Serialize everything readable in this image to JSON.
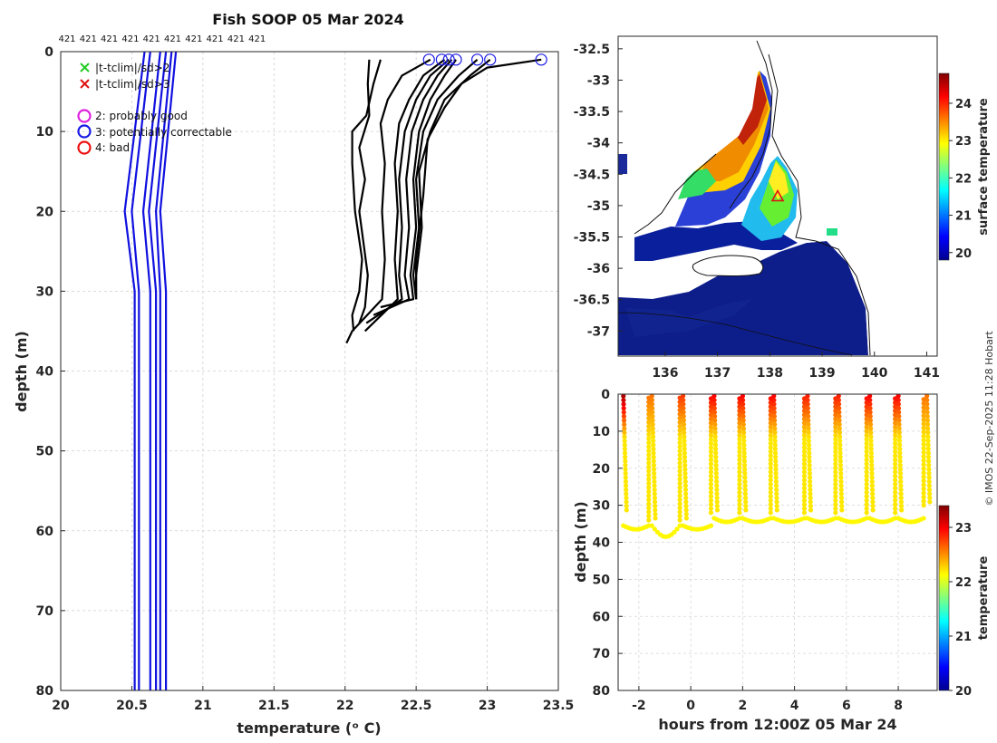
{
  "figure": {
    "title": "Fish SOOP 05 Mar 2024",
    "copyright": "© IMOS 22-Sep-2025 11:28 Hobart"
  },
  "legend": {
    "items": [
      {
        "label": "|t-tclim|/sd>2",
        "marker": "x",
        "color": "#22cc22"
      },
      {
        "label": "|t-tclim|/sd>3",
        "marker": "x",
        "color": "#e01010"
      },
      {
        "label": "2: probably good",
        "marker": "o",
        "color": "#dd22dd"
      },
      {
        "label": "3: potentially correctable",
        "marker": "o",
        "color": "#1a1ae6"
      },
      {
        "label": "4: bad",
        "marker": "o",
        "color": "#ee1111"
      }
    ]
  },
  "colors": {
    "climatology": "#1010e0",
    "profiles": "#000000",
    "flag3": "#1a1ae6"
  },
  "chart_data": [
    {
      "type": "line",
      "id": "profile-plot",
      "xlabel": "temperature (ᵒ C)",
      "ylabel": "depth (m)",
      "xlim": [
        20,
        23.5
      ],
      "ylim": [
        80,
        0
      ],
      "xticks": [
        20,
        20.5,
        21,
        21.5,
        22,
        22.5,
        23,
        23.5
      ],
      "yticks": [
        0,
        10,
        20,
        30,
        40,
        50,
        60,
        70,
        80
      ],
      "grid": true,
      "top_labels": [
        "421",
        "421",
        "421",
        "421",
        "421",
        "421",
        "421",
        "421",
        "421",
        "421"
      ],
      "climatology_series": [
        {
          "name": "",
          "points": [
            [
              20.59,
              0
            ],
            [
              20.45,
              20
            ],
            [
              20.52,
              30
            ],
            [
              20.52,
              80
            ]
          ]
        },
        {
          "name": "",
          "points": [
            [
              20.63,
              0
            ],
            [
              20.5,
              20
            ],
            [
              20.55,
              30
            ],
            [
              20.55,
              80
            ]
          ]
        },
        {
          "name": "",
          "points": [
            [
              20.7,
              0
            ],
            [
              20.58,
              20
            ],
            [
              20.63,
              30
            ],
            [
              20.63,
              80
            ]
          ]
        },
        {
          "name": "",
          "points": [
            [
              20.74,
              0
            ],
            [
              20.62,
              20
            ],
            [
              20.67,
              30
            ],
            [
              20.67,
              80
            ]
          ]
        },
        {
          "name": "",
          "points": [
            [
              20.78,
              0
            ],
            [
              20.67,
              20
            ],
            [
              20.7,
              30
            ],
            [
              20.7,
              80
            ]
          ]
        },
        {
          "name": "",
          "points": [
            [
              20.81,
              0
            ],
            [
              20.7,
              20
            ],
            [
              20.74,
              30
            ],
            [
              20.74,
              80
            ]
          ]
        }
      ],
      "profile_series": [
        {
          "name": "",
          "points": [
            [
              22.17,
              1
            ],
            [
              22.16,
              4
            ],
            [
              22.17,
              8
            ],
            [
              22.1,
              12
            ],
            [
              22.14,
              16
            ],
            [
              22.1,
              20
            ],
            [
              22.13,
              24
            ],
            [
              22.16,
              28
            ],
            [
              22.14,
              32
            ],
            [
              22.1,
              34
            ]
          ]
        },
        {
          "name": "",
          "points": [
            [
              22.25,
              1
            ],
            [
              22.2,
              4
            ],
            [
              22.15,
              8
            ],
            [
              22.05,
              10
            ],
            [
              22.05,
              14
            ],
            [
              22.07,
              20
            ],
            [
              22.12,
              26
            ],
            [
              22.1,
              30
            ],
            [
              22.05,
              33
            ],
            [
              22.06,
              35
            ]
          ]
        },
        {
          "name": "",
          "points": [
            [
              22.6,
              1
            ],
            [
              22.4,
              3
            ],
            [
              22.3,
              6
            ],
            [
              22.25,
              9
            ],
            [
              22.28,
              14
            ],
            [
              22.26,
              20
            ],
            [
              22.28,
              26
            ],
            [
              22.26,
              31
            ],
            [
              22.05,
              35
            ],
            [
              22.01,
              36.5
            ]
          ]
        },
        {
          "name": "",
          "points": [
            [
              22.7,
              1
            ],
            [
              22.55,
              3
            ],
            [
              22.45,
              6
            ],
            [
              22.38,
              9
            ],
            [
              22.35,
              14
            ],
            [
              22.37,
              20
            ],
            [
              22.35,
              26
            ],
            [
              22.37,
              31
            ],
            [
              22.14,
              35
            ]
          ]
        },
        {
          "name": "",
          "points": [
            [
              22.73,
              1
            ],
            [
              22.6,
              3
            ],
            [
              22.5,
              6
            ],
            [
              22.42,
              10
            ],
            [
              22.38,
              16
            ],
            [
              22.4,
              22
            ],
            [
              22.38,
              28
            ],
            [
              22.4,
              31
            ],
            [
              22.15,
              34
            ]
          ]
        },
        {
          "name": "",
          "points": [
            [
              22.75,
              1
            ],
            [
              22.65,
              3
            ],
            [
              22.55,
              6
            ],
            [
              22.47,
              10
            ],
            [
              22.43,
              16
            ],
            [
              22.45,
              22
            ],
            [
              22.42,
              28
            ],
            [
              22.45,
              31
            ],
            [
              22.2,
              33
            ]
          ]
        },
        {
          "name": "",
          "points": [
            [
              22.78,
              1
            ],
            [
              22.7,
              3
            ],
            [
              22.6,
              6
            ],
            [
              22.52,
              10
            ],
            [
              22.48,
              16
            ],
            [
              22.5,
              22
            ],
            [
              22.46,
              28
            ],
            [
              22.48,
              31
            ],
            [
              22.25,
              32
            ]
          ]
        },
        {
          "name": "",
          "points": [
            [
              22.93,
              1
            ],
            [
              22.8,
              3
            ],
            [
              22.65,
              6
            ],
            [
              22.55,
              10
            ],
            [
              22.5,
              16
            ],
            [
              22.52,
              22
            ],
            [
              22.48,
              28
            ],
            [
              22.5,
              31
            ]
          ]
        },
        {
          "name": "",
          "points": [
            [
              23.02,
              1
            ],
            [
              22.88,
              3
            ],
            [
              22.7,
              6
            ],
            [
              22.6,
              10
            ],
            [
              22.52,
              15
            ],
            [
              22.54,
              22
            ],
            [
              22.5,
              28
            ],
            [
              22.5,
              31
            ]
          ]
        },
        {
          "name": "",
          "points": [
            [
              23.38,
              1
            ],
            [
              23.0,
              2
            ],
            [
              22.82,
              4
            ],
            [
              22.7,
              7
            ],
            [
              22.58,
              11
            ],
            [
              22.55,
              18
            ],
            [
              22.5,
              26
            ],
            [
              22.5,
              31
            ]
          ]
        }
      ],
      "flag3_markers": [
        [
          22.59,
          1
        ],
        [
          22.68,
          1
        ],
        [
          22.73,
          1
        ],
        [
          22.78,
          1
        ],
        [
          22.93,
          1
        ],
        [
          23.02,
          1
        ],
        [
          23.38,
          1
        ]
      ]
    },
    {
      "type": "heatmap",
      "id": "sst-map",
      "colorbar_label": "surface temperature",
      "xlim": [
        135.1,
        141.2
      ],
      "ylim": [
        -37.4,
        -32.3
      ],
      "xticks": [
        136,
        137,
        138,
        139,
        140,
        141
      ],
      "yticks": [
        -32.5,
        -33,
        -33.5,
        -34,
        -34.5,
        -35,
        -35.5,
        -36,
        -36.5,
        -37
      ],
      "colorbar_range": [
        19.8,
        24.8
      ],
      "colorbar_ticks": [
        20,
        21,
        22,
        23,
        24
      ],
      "track_position": [
        138.15,
        -34.85
      ]
    },
    {
      "type": "scatter",
      "id": "depth-time",
      "xlabel": "hours from 12:00Z 05 Mar 24",
      "ylabel": "depth (m)",
      "colorbar_label": "temperature",
      "xlim": [
        -2.8,
        9.5
      ],
      "ylim": [
        80,
        0
      ],
      "xticks": [
        -2,
        0,
        2,
        4,
        6,
        8
      ],
      "yticks": [
        0,
        10,
        20,
        30,
        40,
        50,
        60,
        70,
        80
      ],
      "colorbar_range": [
        20,
        23.4
      ],
      "colorbar_ticks": [
        20,
        21,
        22,
        23
      ],
      "casts": [
        {
          "hour": -2.6,
          "bottom": 32,
          "surface_temp": 23.3
        },
        {
          "hour": -1.5,
          "bottom": 34,
          "surface_temp": 22.6
        },
        {
          "hour": -0.3,
          "bottom": 34,
          "surface_temp": 22.8
        },
        {
          "hour": 0.9,
          "bottom": 32,
          "surface_temp": 23.0
        },
        {
          "hour": 2.0,
          "bottom": 32,
          "surface_temp": 23.0
        },
        {
          "hour": 3.2,
          "bottom": 32,
          "surface_temp": 23.0
        },
        {
          "hour": 4.5,
          "bottom": 32,
          "surface_temp": 22.9
        },
        {
          "hour": 5.7,
          "bottom": 32,
          "surface_temp": 22.9
        },
        {
          "hour": 6.9,
          "bottom": 32,
          "surface_temp": 23.0
        },
        {
          "hour": 8.0,
          "bottom": 32,
          "surface_temp": 23.0
        },
        {
          "hour": 9.1,
          "bottom": 30,
          "surface_temp": 22.6
        }
      ]
    }
  ]
}
